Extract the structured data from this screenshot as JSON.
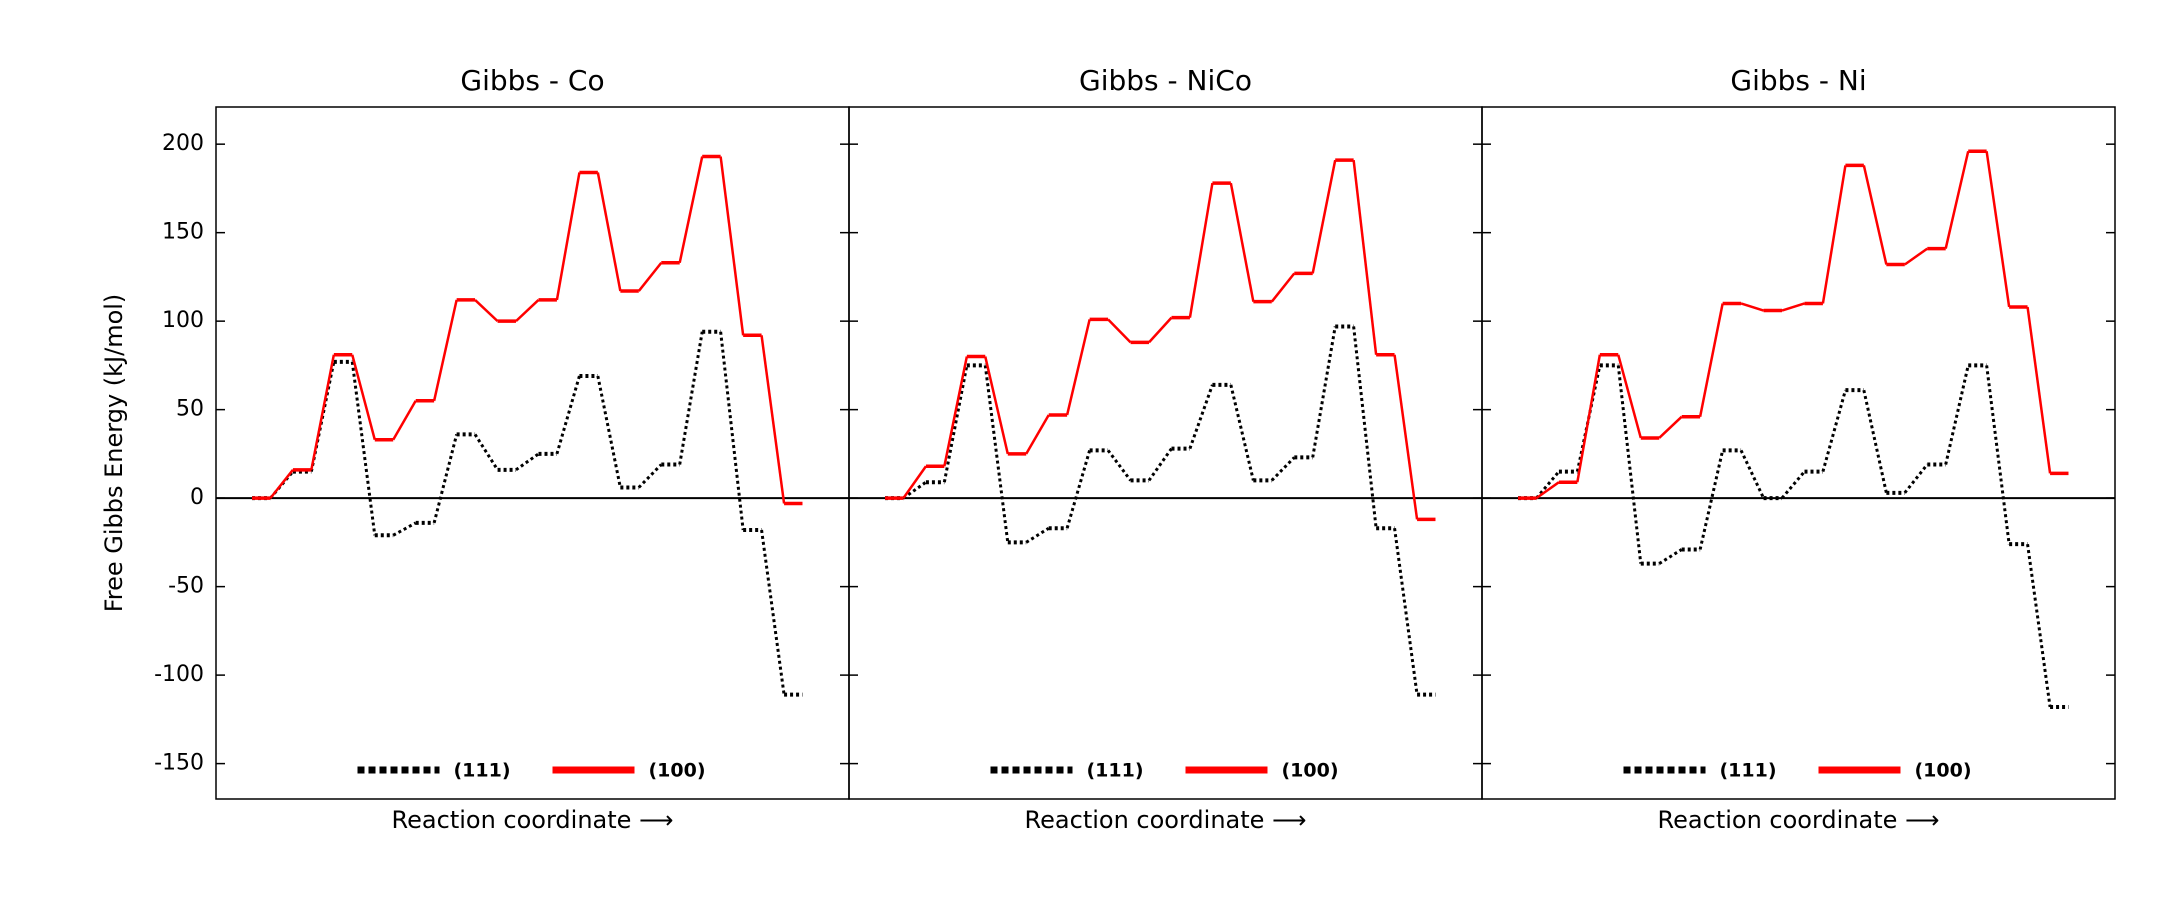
{
  "chart_data": [
    {
      "type": "line",
      "title": "Gibbs - Co",
      "xlabel": "Reaction coordinate ⟶",
      "ylabel": "Free Gibbs Energy (kJ/mol)",
      "ylim": [
        -170,
        221
      ],
      "yticks": [
        -150,
        -100,
        -50,
        0,
        50,
        100,
        150,
        200
      ],
      "legend": "lower center",
      "series": [
        {
          "name": "(111)",
          "color": "#000000",
          "style": "dotted",
          "values": [
            0,
            15,
            77,
            -21,
            -14,
            36,
            16,
            25,
            69,
            6,
            19,
            94,
            -18,
            -111
          ]
        },
        {
          "name": "(100)",
          "color": "#ff0000",
          "style": "solid",
          "values": [
            0,
            16,
            81,
            33,
            55,
            112,
            100,
            112,
            184,
            117,
            133,
            193,
            92,
            -3
          ]
        }
      ]
    },
    {
      "type": "line",
      "title": "Gibbs - NiCo",
      "xlabel": "Reaction coordinate ⟶",
      "ylim": [
        -170,
        221
      ],
      "legend": "lower center",
      "series": [
        {
          "name": "(111)",
          "color": "#000000",
          "style": "dotted",
          "values": [
            0,
            9,
            75,
            -25,
            -17,
            27,
            10,
            28,
            64,
            10,
            23,
            97,
            -17,
            -111
          ]
        },
        {
          "name": "(100)",
          "color": "#ff0000",
          "style": "solid",
          "values": [
            0,
            18,
            80,
            25,
            47,
            101,
            88,
            102,
            178,
            111,
            127,
            191,
            81,
            -12
          ]
        }
      ]
    },
    {
      "type": "line",
      "title": "Gibbs - Ni",
      "xlabel": "Reaction coordinate ⟶",
      "ylim": [
        -170,
        221
      ],
      "legend": "lower center",
      "series": [
        {
          "name": "(111)",
          "color": "#000000",
          "style": "dotted",
          "values": [
            0,
            15,
            75,
            -37,
            -29,
            27,
            0,
            15,
            61,
            3,
            19,
            75,
            -26,
            -118
          ]
        },
        {
          "name": "(100)",
          "color": "#ff0000",
          "style": "solid",
          "values": [
            0,
            9,
            81,
            34,
            46,
            110,
            106,
            110,
            188,
            132,
            141,
            196,
            108,
            14
          ]
        }
      ]
    }
  ]
}
